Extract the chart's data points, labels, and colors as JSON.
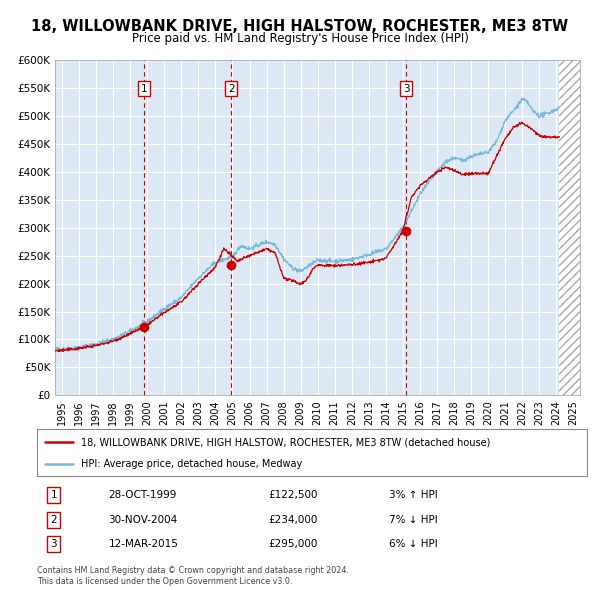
{
  "title": "18, WILLOWBANK DRIVE, HIGH HALSTOW, ROCHESTER, ME3 8TW",
  "subtitle": "Price paid vs. HM Land Registry's House Price Index (HPI)",
  "title_fontsize": 10.5,
  "subtitle_fontsize": 8.5,
  "ylim": [
    0,
    600000
  ],
  "yticks": [
    0,
    50000,
    100000,
    150000,
    200000,
    250000,
    300000,
    350000,
    400000,
    450000,
    500000,
    550000,
    600000
  ],
  "xlim_start": 1994.6,
  "xlim_end": 2025.4,
  "plot_bg_color": "#dce9f5",
  "grid_color": "#ffffff",
  "hpi_color": "#7ab8d9",
  "price_color": "#cc0000",
  "sale_marker_color": "#cc0000",
  "dashed_line_color": "#cc0000",
  "hatch_start": 2024.17,
  "transactions": [
    {
      "num": 1,
      "date_str": "28-OCT-1999",
      "year": 1999.82,
      "price": 122500,
      "pct": "3%",
      "dir": "↑"
    },
    {
      "num": 2,
      "date_str": "30-NOV-2004",
      "year": 2004.92,
      "price": 234000,
      "pct": "7%",
      "dir": "↓"
    },
    {
      "num": 3,
      "date_str": "12-MAR-2015",
      "year": 2015.19,
      "price": 295000,
      "pct": "6%",
      "dir": "↓"
    }
  ],
  "legend_property_label": "18, WILLOWBANK DRIVE, HIGH HALSTOW, ROCHESTER, ME3 8TW (detached house)",
  "legend_hpi_label": "HPI: Average price, detached house, Medway",
  "footer1": "Contains HM Land Registry data © Crown copyright and database right 2024.",
  "footer2": "This data is licensed under the Open Government Licence v3.0."
}
